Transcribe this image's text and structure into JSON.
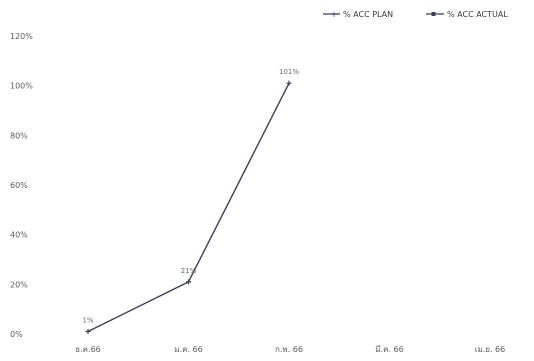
{
  "chart_data": {
    "type": "line",
    "title": "",
    "xlabel": "",
    "ylabel": "",
    "categories": [
      "ธ.ค.66",
      "ม.ค. 66",
      "ก.พ. 66",
      "มี.ค. 66",
      "เม.ย. 66"
    ],
    "y_ticks": [
      "0%",
      "20%",
      "40%",
      "60%",
      "80%",
      "100%",
      "120%"
    ],
    "ylim": [
      0,
      120
    ],
    "grid": false,
    "legend_position": "top-right",
    "series": [
      {
        "name": "% ACC PLAN",
        "values": [
          1,
          21,
          101,
          null,
          null
        ],
        "labels": [
          "1%",
          "21%",
          "101%",
          "",
          ""
        ],
        "color": "#3a3f5a",
        "marker": "cross"
      },
      {
        "name": "% ACC ACTUAL",
        "values": [
          null,
          null,
          null,
          null,
          null
        ],
        "labels": [
          "",
          "",
          "",
          "",
          ""
        ],
        "color": "#3a3f5a",
        "marker": "square"
      }
    ]
  }
}
